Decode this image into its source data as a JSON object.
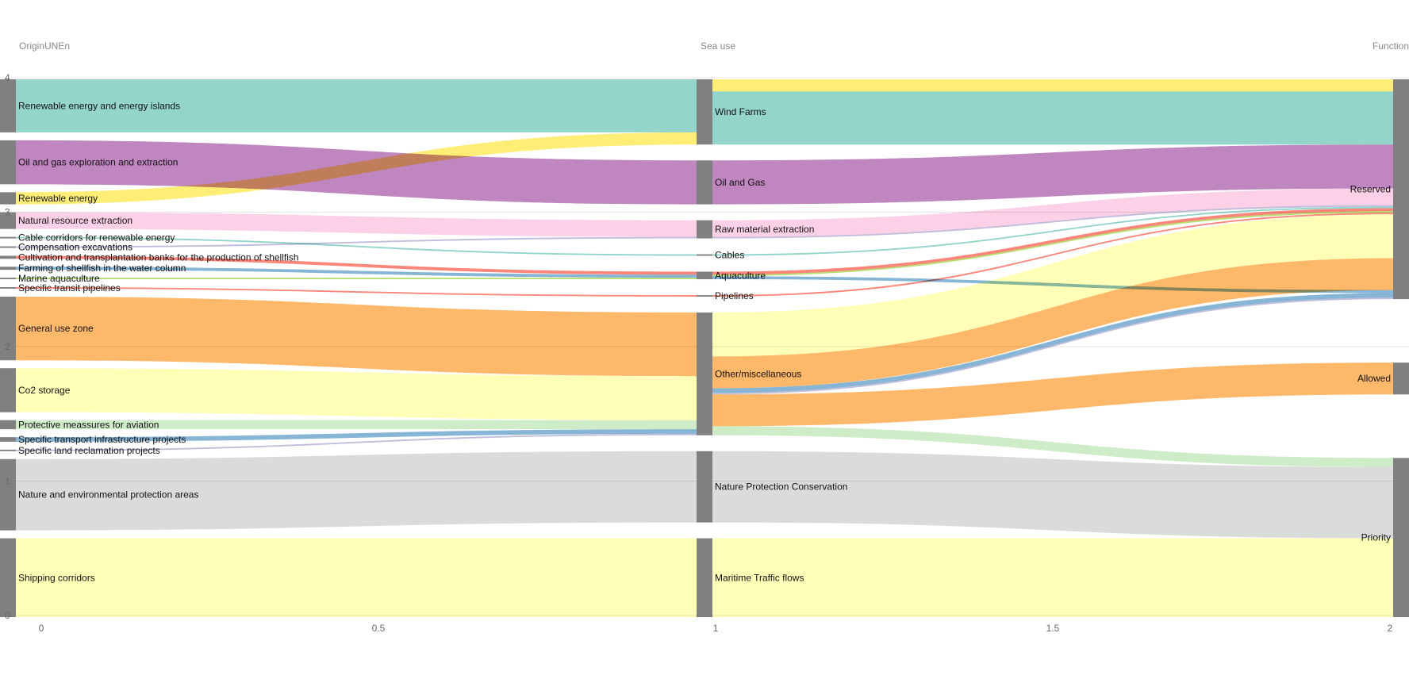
{
  "chart_data": {
    "type": "sankey",
    "columns": [
      {
        "title": "OriginUNEn",
        "x": 0
      },
      {
        "title": "Sea use",
        "x": 1
      },
      {
        "title": "Function",
        "x": 2
      }
    ],
    "x_ticks": [
      "0",
      "0.5",
      "1",
      "1.5",
      "2"
    ],
    "x_range": [
      0,
      2
    ],
    "y_ticks": [
      {
        "label": "4",
        "value": 4
      },
      {
        "label": "3",
        "value": 3
      },
      {
        "label": "2",
        "value": 2
      },
      {
        "label": "1",
        "value": 1
      },
      {
        "label": "0",
        "value": 0
      }
    ],
    "y_range": [
      0,
      4
    ],
    "node_color": "#808080",
    "nodes": [
      {
        "id": "renew_islands",
        "label": "Renewable energy and energy islands",
        "column": 0
      },
      {
        "id": "oilgas_expl",
        "label": "Oil and gas exploration and extraction",
        "column": 0
      },
      {
        "id": "renew",
        "label": "Renewable energy",
        "column": 0
      },
      {
        "id": "natres",
        "label": "Natural resource extraction",
        "column": 0
      },
      {
        "id": "cable_corr",
        "label": "Cable corridors for renewable energy",
        "column": 0
      },
      {
        "id": "comp_exc",
        "label": "Compensation excavations",
        "column": 0
      },
      {
        "id": "cult_banks",
        "label": "Cultivation and transplantation banks for the production of shellfish",
        "column": 0
      },
      {
        "id": "farm_shell",
        "label": "Farming of shellfish in the water column",
        "column": 0
      },
      {
        "id": "marine_aqua",
        "label": "Marine aquaculture",
        "column": 0
      },
      {
        "id": "transit_pipe",
        "label": "Specific transit pipelines",
        "column": 0
      },
      {
        "id": "general_use",
        "label": "General use zone",
        "column": 0
      },
      {
        "id": "co2",
        "label": "Co2 storage",
        "column": 0
      },
      {
        "id": "aviation",
        "label": "Protective meassures for aviation",
        "column": 0
      },
      {
        "id": "transport_infra",
        "label": "Specific transport infrastructure projects",
        "column": 0
      },
      {
        "id": "land_recl",
        "label": "Specific land reclamation projects",
        "column": 0
      },
      {
        "id": "nature_areas",
        "label": "Nature and environmental protection areas",
        "column": 0
      },
      {
        "id": "shipping",
        "label": "Shipping corridors",
        "column": 0
      },
      {
        "id": "wind",
        "label": "Wind Farms",
        "column": 1
      },
      {
        "id": "oilgas",
        "label": "Oil and Gas",
        "column": 1
      },
      {
        "id": "raw",
        "label": "Raw material extraction",
        "column": 1
      },
      {
        "id": "cables",
        "label": "Cables",
        "column": 1
      },
      {
        "id": "aquaculture",
        "label": "Aquaculture",
        "column": 1
      },
      {
        "id": "pipelines",
        "label": "Pipelines",
        "column": 1
      },
      {
        "id": "other",
        "label": "Other/miscellaneous",
        "column": 1
      },
      {
        "id": "npc",
        "label": "Nature Protection Conservation",
        "column": 1
      },
      {
        "id": "maritime",
        "label": "Maritime Traffic flows",
        "column": 1
      },
      {
        "id": "reserved",
        "label": "Reserved",
        "column": 2
      },
      {
        "id": "allowed",
        "label": "Allowed",
        "column": 2
      },
      {
        "id": "priority",
        "label": "Priority",
        "column": 2
      }
    ],
    "links": [
      {
        "source": "renew_islands",
        "target": "wind",
        "value": 0.35,
        "color": "#8dd3c7"
      },
      {
        "source": "renew",
        "target": "wind",
        "value": 0.08,
        "color": "#ffed6f"
      },
      {
        "source": "oilgas_expl",
        "target": "oilgas",
        "value": 0.29,
        "color": "#bc80bd"
      },
      {
        "source": "natres",
        "target": "raw",
        "value": 0.11,
        "color": "#fccde5"
      },
      {
        "source": "cable_corr",
        "target": "cables",
        "value": 0.01,
        "color": "#8dd3c7"
      },
      {
        "source": "comp_exc",
        "target": "raw",
        "value": 0.01,
        "color": "#bebada"
      },
      {
        "source": "cult_banks",
        "target": "aquaculture",
        "value": 0.02,
        "color": "#fb8072"
      },
      {
        "source": "farm_shell",
        "target": "aquaculture",
        "value": 0.02,
        "color": "#80b1d3"
      },
      {
        "source": "marine_aqua",
        "target": "aquaculture",
        "value": 0.01,
        "color": "#b3de69"
      },
      {
        "source": "transit_pipe",
        "target": "pipelines",
        "value": 0.01,
        "color": "#fb8072"
      },
      {
        "source": "general_use",
        "target": "other",
        "value": 0.42,
        "color": "#fdb462"
      },
      {
        "source": "co2",
        "target": "other",
        "value": 0.29,
        "color": "#ffffb3"
      },
      {
        "source": "aviation",
        "target": "other",
        "value": 0.06,
        "color": "#ccebc5"
      },
      {
        "source": "transport_infra",
        "target": "other",
        "value": 0.03,
        "color": "#80b1d3"
      },
      {
        "source": "land_recl",
        "target": "other",
        "value": 0.01,
        "color": "#bebada"
      },
      {
        "source": "nature_areas",
        "target": "npc",
        "value": 0.47,
        "color": "#d9d9d9"
      },
      {
        "source": "shipping",
        "target": "maritime",
        "value": 0.52,
        "color": "#ffffb3"
      },
      {
        "source": "wind",
        "target": "reserved",
        "value": 0.08,
        "color": "#ffed6f"
      },
      {
        "source": "wind",
        "target": "reserved",
        "value": 0.35,
        "color": "#8dd3c7"
      },
      {
        "source": "oilgas",
        "target": "reserved",
        "value": 0.29,
        "color": "#bc80bd"
      },
      {
        "source": "raw",
        "target": "reserved",
        "value": 0.11,
        "color": "#fccde5"
      },
      {
        "source": "raw",
        "target": "reserved",
        "value": 0.01,
        "color": "#bebada"
      },
      {
        "source": "cables",
        "target": "reserved",
        "value": 0.01,
        "color": "#8dd3c7"
      },
      {
        "source": "aquaculture",
        "target": "reserved",
        "value": 0.02,
        "color": "#fb8072"
      },
      {
        "source": "aquaculture",
        "target": "reserved",
        "value": 0.01,
        "color": "#b3de69"
      },
      {
        "source": "pipelines",
        "target": "reserved",
        "value": 0.01,
        "color": "#fb8072"
      },
      {
        "source": "other",
        "target": "reserved",
        "value": 0.29,
        "color": "#ffffb3"
      },
      {
        "source": "other",
        "target": "reserved",
        "value": 0.21,
        "color": "#fdb462"
      },
      {
        "source": "aquaculture",
        "target": "reserved",
        "value": 0.02,
        "color": "#80b1d3"
      },
      {
        "source": "other",
        "target": "reserved",
        "value": 0.03,
        "color": "#80b1d3"
      },
      {
        "source": "other",
        "target": "reserved",
        "value": 0.01,
        "color": "#bebada"
      },
      {
        "source": "other",
        "target": "allowed",
        "value": 0.21,
        "color": "#fdb462"
      },
      {
        "source": "other",
        "target": "priority",
        "value": 0.06,
        "color": "#ccebc5"
      },
      {
        "source": "npc",
        "target": "priority",
        "value": 0.47,
        "color": "#d9d9d9"
      },
      {
        "source": "maritime",
        "target": "priority",
        "value": 0.52,
        "color": "#ffffb3"
      }
    ]
  }
}
